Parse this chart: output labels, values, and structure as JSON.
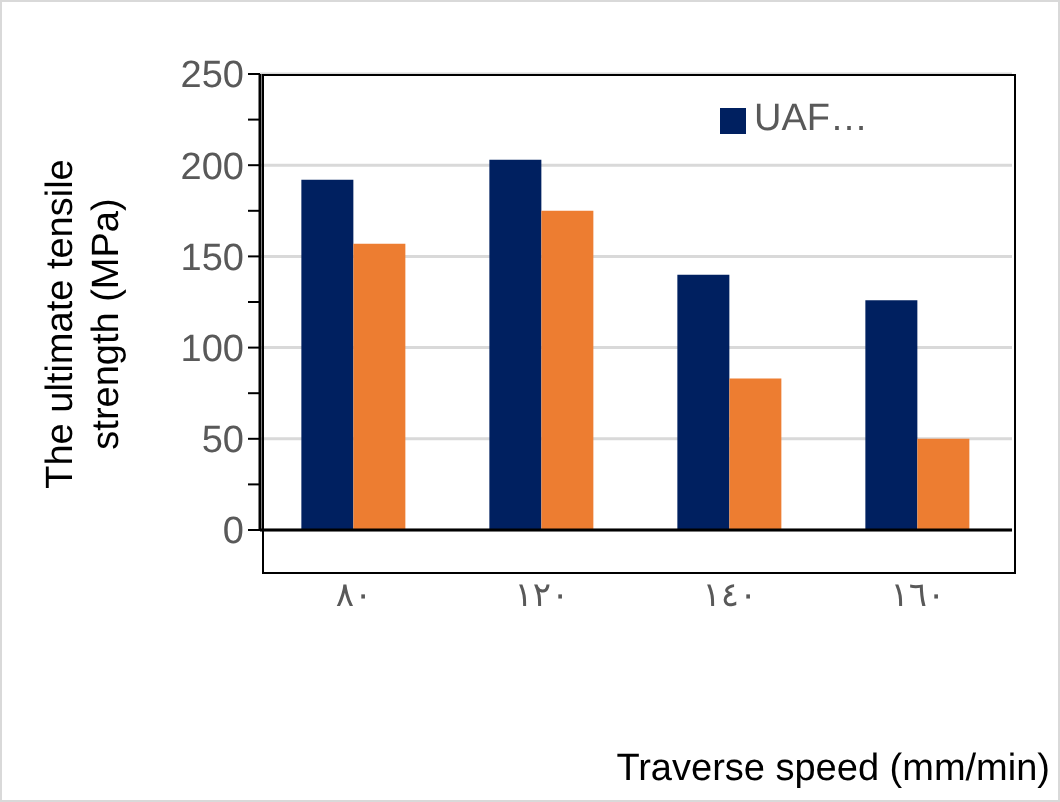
{
  "chart_data": {
    "type": "bar",
    "ylabel": "The ultimate tensile strength (MPa)",
    "xlabel": "Traverse speed (mm/min)",
    "categories": [
      "٨٠",
      "١٢٠",
      "١٤٠",
      "١٦٠"
    ],
    "series": [
      {
        "name": "UAF…",
        "color": "#002060",
        "values": [
          192,
          203,
          140,
          126
        ]
      },
      {
        "color": "#ed7d31",
        "values": [
          157,
          175,
          83,
          50
        ]
      }
    ],
    "ylim": [
      0,
      250
    ],
    "yticks": [
      0,
      {
        "value": 25,
        "label": null
      },
      50,
      {
        "value": 75,
        "label": null
      },
      100,
      {
        "value": 125,
        "label": null
      },
      150,
      {
        "value": 175,
        "label": null
      },
      200,
      {
        "value": 225,
        "label": null
      },
      250
    ],
    "grid": "y",
    "legend": "top right"
  }
}
